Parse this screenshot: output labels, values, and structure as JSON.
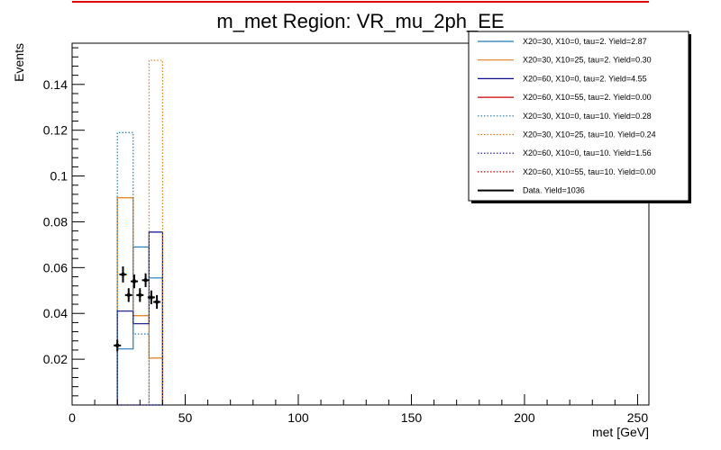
{
  "chart_data": {
    "type": "histogram",
    "title": "m_met Region: VR_mu_2ph_EE",
    "xlabel": "met [GeV]",
    "ylabel": "Events",
    "xlim": [
      0,
      255
    ],
    "ylim": [
      0,
      0.158
    ],
    "x_ticks": [
      0,
      50,
      100,
      150,
      200,
      250
    ],
    "x_tick_labels": [
      "0",
      "50",
      "100",
      "150",
      "200",
      "250"
    ],
    "y_ticks": [
      0.02,
      0.04,
      0.06,
      0.08,
      0.1,
      0.12,
      0.14
    ],
    "y_tick_labels": [
      "0.02",
      "0.04",
      "0.06",
      "0.08",
      "0.1",
      "0.12",
      "0.14"
    ],
    "legend_position": "top-right",
    "series": [
      {
        "name": "X20=30, X10=0, tau=2. Yield=2.87",
        "color": "#1f77b4",
        "style": "solid",
        "bins": [
          [
            20,
            27,
            0.0245
          ],
          [
            27,
            34,
            0.069
          ],
          [
            34,
            40,
            0.0555
          ]
        ]
      },
      {
        "name": "X20=30, X10=25, tau=2. Yield=0.30",
        "color": "#e07b1a",
        "style": "solid",
        "bins": [
          [
            20,
            27,
            0.0905
          ],
          [
            27,
            34,
            0.039
          ],
          [
            34,
            40,
            0.0205
          ]
        ]
      },
      {
        "name": "X20=60, X10=0, tau=2. Yield=4.55",
        "color": "#0b0b8c",
        "style": "solid",
        "bins": [
          [
            20,
            27,
            0.041
          ],
          [
            27,
            34,
            0.0355
          ],
          [
            34,
            40,
            0.0755
          ]
        ]
      },
      {
        "name": "X20=60, X10=55, tau=2. Yield=0.00",
        "color": "#cc0000",
        "style": "solid",
        "bins": []
      },
      {
        "name": "X20=30, X10=0, tau=10. Yield=0.28",
        "color": "#1f77b4",
        "style": "dotted",
        "bins": [
          [
            20,
            27,
            0.119
          ],
          [
            27,
            34,
            0.031
          ],
          [
            34,
            40,
            0.0
          ]
        ]
      },
      {
        "name": "X20=30, X10=25, tau=10. Yield=0.24",
        "color": "#e07b1a",
        "style": "dotted",
        "bins": [
          [
            20,
            27,
            0.0
          ],
          [
            27,
            34,
            0.0
          ],
          [
            34,
            40,
            0.1505
          ]
        ]
      },
      {
        "name": "X20=60, X10=0, tau=10. Yield=1.56",
        "color": "#0b0b8c",
        "style": "dotted",
        "bins": [
          [
            20,
            27,
            0.0
          ],
          [
            27,
            34,
            0.0
          ],
          [
            34,
            40,
            0.0
          ]
        ]
      },
      {
        "name": "X20=60, X10=55, tau=10. Yield=0.00",
        "color": "#cc0000",
        "style": "dotted",
        "bins": []
      },
      {
        "name": "Data. Yield=1036",
        "color": "#000000",
        "style": "points",
        "points": [
          {
            "x": 20,
            "y": 0.026,
            "yerr": 0.0025
          },
          {
            "x": 22.5,
            "y": 0.057,
            "yerr": 0.0035
          },
          {
            "x": 25,
            "y": 0.048,
            "yerr": 0.003
          },
          {
            "x": 27.5,
            "y": 0.054,
            "yerr": 0.003
          },
          {
            "x": 30,
            "y": 0.048,
            "yerr": 0.003
          },
          {
            "x": 32.5,
            "y": 0.0545,
            "yerr": 0.003
          },
          {
            "x": 35,
            "y": 0.047,
            "yerr": 0.003
          },
          {
            "x": 37.5,
            "y": 0.045,
            "yerr": 0.003
          }
        ]
      }
    ]
  }
}
